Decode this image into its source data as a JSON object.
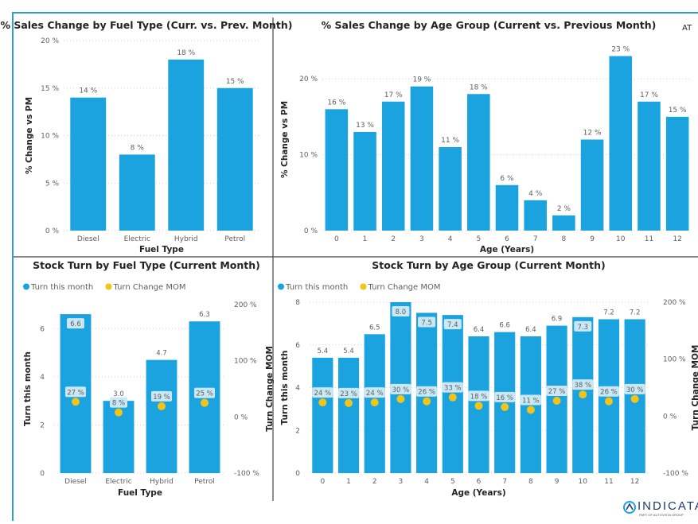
{
  "colors": {
    "bar": "#1aa3df",
    "dot": "#f2c318",
    "label_bg": "#c9e7f5",
    "border": "#2e9fd6",
    "divider": "#444444"
  },
  "charts": {
    "fuel_sales": {
      "title": "% Sales Change by Fuel Type (Curr. vs. Prev. Month)"
    },
    "age_sales": {
      "title": "% Sales Change by Age Group (Current vs. Previous Month)",
      "corner_text": "AT"
    },
    "fuel_stock": {
      "title": "Stock Turn by Fuel Type (Current Month)"
    },
    "age_stock": {
      "title": "Stock Turn by Age Group (Current Month)"
    }
  },
  "logo": {
    "text": "INDICATA",
    "sub": "PART OF AUTOVISTA GROUP",
    "icon": "indicata-logo-icon"
  },
  "chart_data": [
    {
      "id": "fuel_sales",
      "type": "bar",
      "title": "% Sales Change by Fuel Type (Curr. vs. Prev. Month)",
      "xlabel": "Fuel Type",
      "ylabel": "% Change vs PM",
      "categories": [
        "Diesel",
        "Electric",
        "Hybrid",
        "Petrol"
      ],
      "values": [
        14,
        8,
        18,
        15
      ],
      "data_labels": [
        "14 %",
        "8 %",
        "18 %",
        "15 %"
      ],
      "ylim": [
        0,
        20
      ],
      "yticks": [
        0,
        5,
        10,
        15,
        20
      ],
      "ytick_labels": [
        "0 %",
        "5 %",
        "10 %",
        "15 %",
        "20 %"
      ],
      "grid": true
    },
    {
      "id": "age_sales",
      "type": "bar",
      "title": "% Sales Change by Age Group (Current vs. Previous Month)",
      "xlabel": "Age (Years)",
      "ylabel": "% Change vs PM",
      "categories": [
        "0",
        "1",
        "2",
        "3",
        "4",
        "5",
        "6",
        "7",
        "8",
        "9",
        "10",
        "11",
        "12"
      ],
      "values": [
        16,
        13,
        17,
        19,
        11,
        18,
        6,
        4,
        2,
        12,
        23,
        17,
        15
      ],
      "data_labels": [
        "16 %",
        "13 %",
        "17 %",
        "19 %",
        "11 %",
        "18 %",
        "6 %",
        "4 %",
        "2 %",
        "12 %",
        "23 %",
        "17 %",
        "15 %"
      ],
      "ylim": [
        0,
        24
      ],
      "yticks": [
        0,
        10,
        20
      ],
      "ytick_labels": [
        "0 %",
        "10 %",
        "20 %"
      ],
      "grid": true
    },
    {
      "id": "fuel_stock",
      "type": "bar",
      "title": "Stock Turn by Fuel Type (Current Month)",
      "xlabel": "Fuel Type",
      "ylabel": "Turn this month",
      "y2label": "Turn Change MOM",
      "legend_position": "top-left",
      "categories": [
        "Diesel",
        "Electric",
        "Hybrid",
        "Petrol"
      ],
      "series": [
        {
          "name": "Turn this month",
          "type": "bar",
          "values": [
            6.6,
            3.0,
            4.7,
            6.3
          ],
          "labels": [
            "6.6",
            "3.0",
            "4.7",
            "6.3"
          ],
          "label_boxed": [
            true,
            false,
            false,
            false
          ]
        },
        {
          "name": "Turn Change MOM",
          "type": "scatter",
          "axis": "right",
          "values": [
            27,
            8,
            19,
            25
          ],
          "labels": [
            "27 %",
            "8 %",
            "19 %",
            "25 %"
          ]
        }
      ],
      "ylim": [
        0,
        7
      ],
      "yticks": [
        0,
        2,
        4,
        6
      ],
      "ytick_labels": [
        "0",
        "2",
        "4",
        "6"
      ],
      "y2lim": [
        -100,
        200
      ],
      "y2ticks": [
        -100,
        0,
        100,
        200
      ],
      "y2tick_labels": [
        "-100 %",
        "0 %",
        "100 %",
        "200 %"
      ],
      "grid": true
    },
    {
      "id": "age_stock",
      "type": "bar",
      "title": "Stock Turn by Age Group (Current Month)",
      "xlabel": "Age (Years)",
      "ylabel": "Turn this month",
      "y2label": "Turn Change MOM",
      "legend_position": "top-left",
      "categories": [
        "0",
        "1",
        "2",
        "3",
        "4",
        "5",
        "6",
        "7",
        "8",
        "9",
        "10",
        "11",
        "12"
      ],
      "series": [
        {
          "name": "Turn this month",
          "type": "bar",
          "values": [
            5.4,
            5.4,
            6.5,
            8.0,
            7.5,
            7.4,
            6.4,
            6.6,
            6.4,
            6.9,
            7.3,
            7.2,
            7.2
          ],
          "labels": [
            "5.4",
            "5.4",
            "6.5",
            "8.0",
            "7.5",
            "7.4",
            "6.4",
            "6.6",
            "6.4",
            "6.9",
            "7.3",
            "7.2",
            "7.2"
          ],
          "label_boxed": [
            false,
            false,
            false,
            true,
            true,
            true,
            false,
            false,
            false,
            false,
            true,
            false,
            false
          ]
        },
        {
          "name": "Turn Change MOM",
          "type": "scatter",
          "axis": "right",
          "values": [
            24,
            23,
            24,
            30,
            26,
            33,
            18,
            16,
            11,
            27,
            38,
            26,
            30
          ],
          "labels": [
            "24 %",
            "23 %",
            "24 %",
            "30 %",
            "26 %",
            "33 %",
            "18 %",
            "16 %",
            "11 %",
            "27 %",
            "38 %",
            "26 %",
            "30 %"
          ]
        }
      ],
      "ylim": [
        0,
        8
      ],
      "yticks": [
        0,
        2,
        4,
        6,
        8
      ],
      "ytick_labels": [
        "0",
        "2",
        "4",
        "6",
        "8"
      ],
      "y2lim": [
        -100,
        200
      ],
      "y2ticks": [
        -100,
        0,
        100,
        200
      ],
      "y2tick_labels": [
        "-100 %",
        "0 %",
        "100 %",
        "200 %"
      ],
      "grid": true
    }
  ]
}
